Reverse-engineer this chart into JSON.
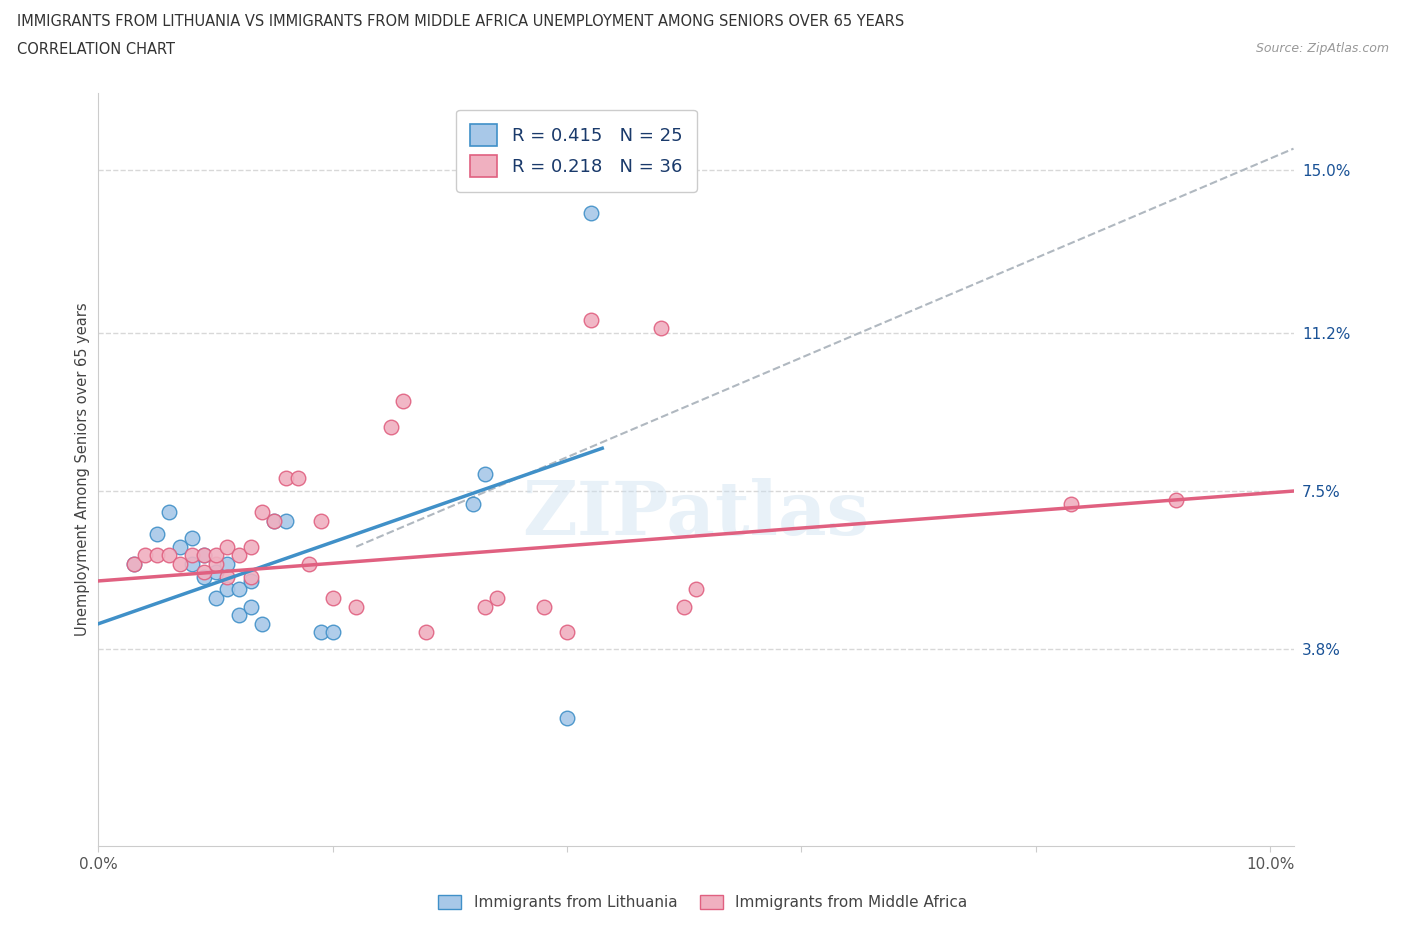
{
  "title_line1": "IMMIGRANTS FROM LITHUANIA VS IMMIGRANTS FROM MIDDLE AFRICA UNEMPLOYMENT AMONG SENIORS OVER 65 YEARS",
  "title_line2": "CORRELATION CHART",
  "source_text": "Source: ZipAtlas.com",
  "ylabel": "Unemployment Among Seniors over 65 years",
  "watermark": "ZIPatlas",
  "xlim": [
    0.0,
    0.102
  ],
  "ylim": [
    -0.008,
    0.168
  ],
  "xtick_values": [
    0.0,
    0.02,
    0.04,
    0.06,
    0.08,
    0.1
  ],
  "xticklabels": [
    "0.0%",
    "",
    "",
    "",
    "",
    "10.0%"
  ],
  "ytick_values": [
    0.038,
    0.075,
    0.112,
    0.15
  ],
  "ytick_labels": [
    "3.8%",
    "7.5%",
    "11.2%",
    "15.0%"
  ],
  "R_lithuania": 0.415,
  "N_lithuania": 25,
  "R_africa": 0.218,
  "N_africa": 36,
  "color_lithuania": "#a8c8e8",
  "color_lithuania_line": "#4090c8",
  "color_africa": "#f0b0c0",
  "color_africa_line": "#e06080",
  "color_trendline_dashed": "#b0b8c0",
  "legend_text_color": "#1a3a6b",
  "gridline_color": "#d8d8d8",
  "scatter_lithuania": [
    [
      0.003,
      0.058
    ],
    [
      0.005,
      0.065
    ],
    [
      0.006,
      0.07
    ],
    [
      0.007,
      0.062
    ],
    [
      0.008,
      0.058
    ],
    [
      0.008,
      0.064
    ],
    [
      0.009,
      0.055
    ],
    [
      0.009,
      0.06
    ],
    [
      0.01,
      0.05
    ],
    [
      0.01,
      0.056
    ],
    [
      0.011,
      0.052
    ],
    [
      0.011,
      0.058
    ],
    [
      0.012,
      0.046
    ],
    [
      0.012,
      0.052
    ],
    [
      0.013,
      0.048
    ],
    [
      0.013,
      0.054
    ],
    [
      0.014,
      0.044
    ],
    [
      0.015,
      0.068
    ],
    [
      0.016,
      0.068
    ],
    [
      0.019,
      0.042
    ],
    [
      0.02,
      0.042
    ],
    [
      0.032,
      0.072
    ],
    [
      0.033,
      0.079
    ],
    [
      0.04,
      0.022
    ],
    [
      0.042,
      0.14
    ]
  ],
  "scatter_africa": [
    [
      0.003,
      0.058
    ],
    [
      0.004,
      0.06
    ],
    [
      0.005,
      0.06
    ],
    [
      0.006,
      0.06
    ],
    [
      0.007,
      0.058
    ],
    [
      0.008,
      0.06
    ],
    [
      0.009,
      0.056
    ],
    [
      0.009,
      0.06
    ],
    [
      0.01,
      0.058
    ],
    [
      0.01,
      0.06
    ],
    [
      0.011,
      0.055
    ],
    [
      0.011,
      0.062
    ],
    [
      0.012,
      0.06
    ],
    [
      0.013,
      0.055
    ],
    [
      0.013,
      0.062
    ],
    [
      0.014,
      0.07
    ],
    [
      0.015,
      0.068
    ],
    [
      0.016,
      0.078
    ],
    [
      0.017,
      0.078
    ],
    [
      0.018,
      0.058
    ],
    [
      0.019,
      0.068
    ],
    [
      0.02,
      0.05
    ],
    [
      0.022,
      0.048
    ],
    [
      0.025,
      0.09
    ],
    [
      0.026,
      0.096
    ],
    [
      0.028,
      0.042
    ],
    [
      0.033,
      0.048
    ],
    [
      0.034,
      0.05
    ],
    [
      0.038,
      0.048
    ],
    [
      0.04,
      0.042
    ],
    [
      0.042,
      0.115
    ],
    [
      0.048,
      0.113
    ],
    [
      0.05,
      0.048
    ],
    [
      0.051,
      0.052
    ],
    [
      0.083,
      0.072
    ],
    [
      0.092,
      0.073
    ]
  ],
  "bottom_legend": [
    "Immigrants from Lithuania",
    "Immigrants from Middle Africa"
  ],
  "blue_line_x": [
    0.0,
    0.043
  ],
  "blue_line_y": [
    0.044,
    0.085
  ],
  "pink_line_x": [
    0.0,
    0.102
  ],
  "pink_line_y": [
    0.054,
    0.075
  ],
  "dash_line_x": [
    0.022,
    0.102
  ],
  "dash_line_y": [
    0.062,
    0.155
  ]
}
